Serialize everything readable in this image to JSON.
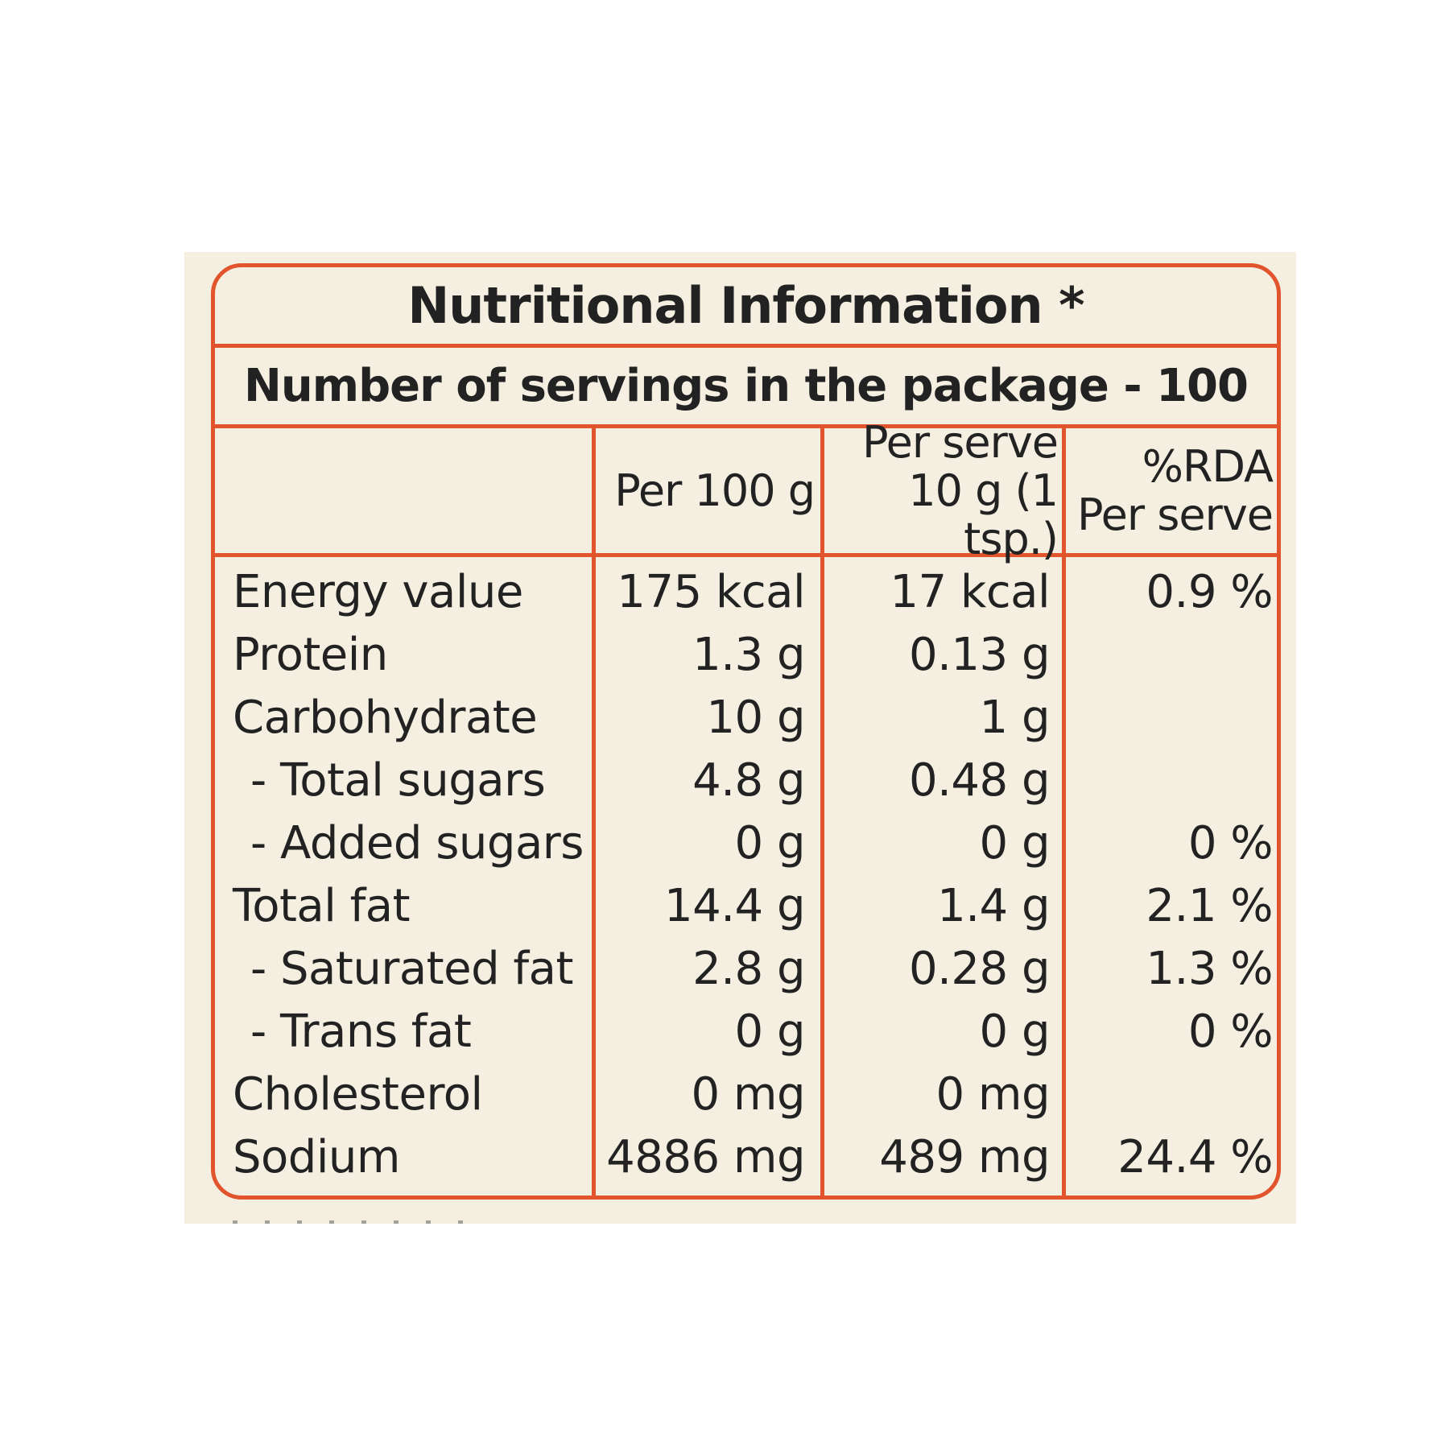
{
  "title": "Nutritional Information *",
  "servings": "Number of servings in the package - 100",
  "headers": {
    "per100": "Per 100 g",
    "perServeLine1": "Per serve",
    "perServeLine2": "10 g (1 tsp.)",
    "rdaLine1": "%RDA",
    "rdaLine2": "Per serve"
  },
  "rows": [
    {
      "name": "Energy value",
      "per100": "175 kcal",
      "perServe": "17 kcal",
      "rda": "0.9 %"
    },
    {
      "name": "Protein",
      "per100": "1.3 g",
      "perServe": "0.13 g",
      "rda": ""
    },
    {
      "name": "Carbohydrate",
      "per100": "10 g",
      "perServe": "1 g",
      "rda": ""
    },
    {
      "name": "- Total sugars",
      "per100": "4.8 g",
      "perServe": "0.48 g",
      "rda": ""
    },
    {
      "name": "- Added sugars",
      "per100": "0 g",
      "perServe": "0 g",
      "rda": "0 %"
    },
    {
      "name": "Total fat",
      "per100": "14.4 g",
      "perServe": "1.4 g",
      "rda": "2.1 %"
    },
    {
      "name": "- Saturated fat",
      "per100": "2.8 g",
      "perServe": "0.28 g",
      "rda": "1.3 %"
    },
    {
      "name": "- Trans fat",
      "per100": "0 g",
      "perServe": "0 g",
      "rda": "0 %"
    },
    {
      "name": "Cholesterol",
      "per100": "0 mg",
      "perServe": "0 mg",
      "rda": ""
    },
    {
      "name": "Sodium",
      "per100": "4886 mg",
      "perServe": "489 mg",
      "rda": "24.4 %"
    }
  ],
  "colors": {
    "border": "#e1542c",
    "panel": "#f4efe1",
    "text": "#222222"
  }
}
